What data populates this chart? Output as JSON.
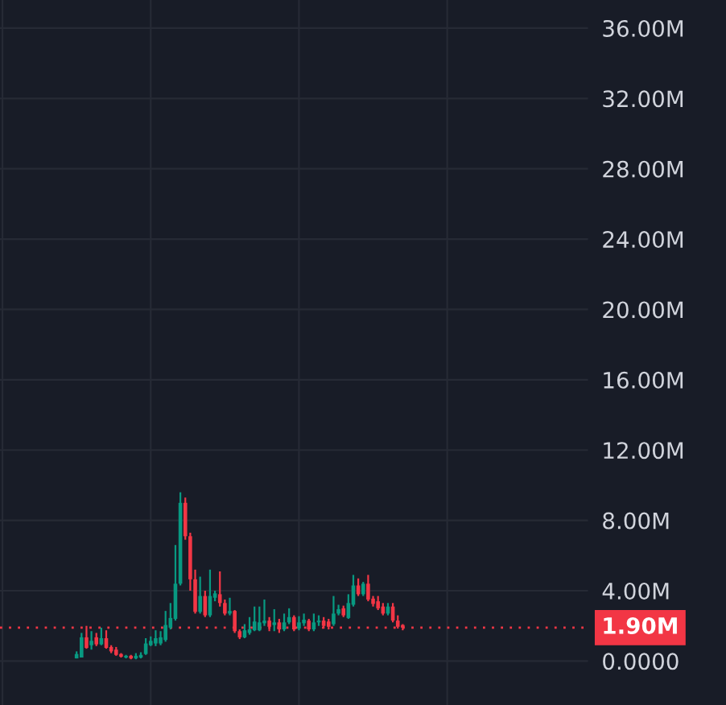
{
  "chart_data": {
    "type": "candlestick",
    "categories": [
      null,
      null,
      null,
      null,
      null,
      null,
      null,
      null,
      null,
      null,
      null,
      null,
      null,
      null,
      null,
      null,
      null,
      null,
      null,
      null,
      null,
      null,
      null,
      null,
      null,
      null,
      null,
      null,
      null,
      null,
      null,
      null,
      null,
      null,
      null,
      null,
      null,
      null,
      null,
      null,
      null,
      null,
      null,
      null,
      null,
      null,
      null,
      null,
      null,
      null,
      null,
      null,
      null,
      null,
      null,
      null,
      null,
      null,
      null,
      null,
      null,
      null,
      null,
      null,
      null,
      null,
      null,
      null,
      null,
      null,
      null,
      null,
      null,
      null,
      null,
      null,
      null,
      null,
      null,
      null,
      null,
      null,
      null,
      null,
      null,
      null,
      null,
      null,
      null,
      null,
      null,
      null,
      null,
      null,
      null,
      null,
      null,
      null,
      null,
      null,
      null,
      null,
      null,
      null,
      null,
      null,
      null,
      null,
      null,
      null,
      null,
      null,
      null,
      null,
      null,
      null,
      null,
      null,
      null
    ],
    "ohlc": [
      null,
      null,
      null,
      null,
      null,
      null,
      null,
      null,
      null,
      null,
      null,
      null,
      null,
      null,
      null,
      [
        0.15,
        0.55,
        0.15,
        0.4
      ],
      [
        0.2,
        1.6,
        0.2,
        1.35
      ],
      [
        1.35,
        2.0,
        0.7,
        0.75
      ],
      [
        0.9,
        1.7,
        0.65,
        1.15
      ],
      [
        1.35,
        1.6,
        0.85,
        0.95
      ],
      [
        0.95,
        1.9,
        0.9,
        1.3
      ],
      [
        1.3,
        1.75,
        0.7,
        0.75
      ],
      [
        0.8,
        0.9,
        0.45,
        0.55
      ],
      [
        0.65,
        0.8,
        0.3,
        0.35
      ],
      [
        0.4,
        0.45,
        0.2,
        0.25
      ],
      [
        0.2,
        0.35,
        0.15,
        0.3
      ],
      [
        0.3,
        0.35,
        0.1,
        0.15
      ],
      [
        0.15,
        0.45,
        0.1,
        0.3
      ],
      [
        0.2,
        0.5,
        0.15,
        0.35
      ],
      [
        0.4,
        1.3,
        0.35,
        1.0
      ],
      [
        0.9,
        1.4,
        0.85,
        1.15
      ],
      [
        1.0,
        1.75,
        0.85,
        1.3
      ],
      [
        1.0,
        1.7,
        0.9,
        1.35
      ],
      [
        1.2,
        2.85,
        1.1,
        2.05
      ],
      [
        1.9,
        3.3,
        1.8,
        2.45
      ],
      [
        2.4,
        6.6,
        2.3,
        4.4
      ],
      [
        4.4,
        9.6,
        4.3,
        9.0
      ],
      [
        9.0,
        9.3,
        6.9,
        7.1
      ],
      [
        7.1,
        7.3,
        4.0,
        4.65
      ],
      [
        4.65,
        5.2,
        2.7,
        2.8
      ],
      [
        2.8,
        4.8,
        2.7,
        3.7
      ],
      [
        3.7,
        4.0,
        2.5,
        2.6
      ],
      [
        2.6,
        5.2,
        2.5,
        3.7
      ],
      [
        3.6,
        4.0,
        3.4,
        3.85
      ],
      [
        3.8,
        5.1,
        3.1,
        3.3
      ],
      [
        3.3,
        3.5,
        2.6,
        2.7
      ],
      [
        2.7,
        3.6,
        2.6,
        2.85
      ],
      [
        2.85,
        2.9,
        1.6,
        1.7
      ],
      [
        1.7,
        1.8,
        1.25,
        1.35
      ],
      [
        1.35,
        2.1,
        1.3,
        1.75
      ],
      [
        1.6,
        2.5,
        1.5,
        1.8
      ],
      [
        1.75,
        3.1,
        1.7,
        2.25
      ],
      [
        1.75,
        3.1,
        1.7,
        2.2
      ],
      [
        2.15,
        3.5,
        2.0,
        2.3
      ],
      [
        2.3,
        2.5,
        1.7,
        1.95
      ],
      [
        2.05,
        2.95,
        1.7,
        2.2
      ],
      [
        2.2,
        2.4,
        1.6,
        1.8
      ],
      [
        1.8,
        2.7,
        1.7,
        2.2
      ],
      [
        2.2,
        3.0,
        2.1,
        2.5
      ],
      [
        2.5,
        2.6,
        1.7,
        1.8
      ],
      [
        1.85,
        2.55,
        1.75,
        2.2
      ],
      [
        2.15,
        2.7,
        2.0,
        2.35
      ],
      [
        2.3,
        2.4,
        1.7,
        1.8
      ],
      [
        1.8,
        2.7,
        1.7,
        2.2
      ],
      [
        2.2,
        2.6,
        2.0,
        2.3
      ],
      [
        2.3,
        2.5,
        1.85,
        2.0
      ],
      [
        2.25,
        2.4,
        1.8,
        1.95
      ],
      [
        2.1,
        3.7,
        2.0,
        2.7
      ],
      [
        2.7,
        3.2,
        2.6,
        2.95
      ],
      [
        3.0,
        3.15,
        2.5,
        2.6
      ],
      [
        2.45,
        3.8,
        2.4,
        3.3
      ],
      [
        3.2,
        4.9,
        3.1,
        4.3
      ],
      [
        4.3,
        4.7,
        3.7,
        3.8
      ],
      [
        3.8,
        4.5,
        3.7,
        4.4
      ],
      [
        4.4,
        4.9,
        3.4,
        3.5
      ],
      [
        3.55,
        3.7,
        3.1,
        3.25
      ],
      [
        3.4,
        3.7,
        2.9,
        3.0
      ],
      [
        3.1,
        3.3,
        2.6,
        2.7
      ],
      [
        2.7,
        3.3,
        2.6,
        3.1
      ],
      [
        3.1,
        3.3,
        2.2,
        2.3
      ],
      [
        2.3,
        2.6,
        1.85,
        1.95
      ],
      [
        2.05,
        2.1,
        1.75,
        1.9
      ],
      null,
      null,
      null,
      null,
      null,
      null,
      null,
      null,
      null,
      null,
      null,
      null,
      null,
      null,
      null,
      null,
      null,
      null,
      null,
      null,
      null,
      null,
      null,
      null,
      null,
      null,
      null,
      null,
      null,
      null,
      null,
      null,
      null,
      null,
      null,
      null,
      null
    ],
    "ylim": [
      -2.5,
      37.6
    ],
    "yticks": [
      {
        "value": 0,
        "label": "0.0000"
      },
      {
        "value": 4,
        "label": "4.00M"
      },
      {
        "value": 8,
        "label": "8.00M"
      },
      {
        "value": 12,
        "label": "12.00M"
      },
      {
        "value": 16,
        "label": "16.00M"
      },
      {
        "value": 20,
        "label": "20.00M"
      },
      {
        "value": 24,
        "label": "24.00M"
      },
      {
        "value": 28,
        "label": "28.00M"
      },
      {
        "value": 32,
        "label": "32.00M"
      },
      {
        "value": 36,
        "label": "36.00M"
      }
    ],
    "tick_labels": "y",
    "grid": true,
    "ref_lines": [
      {
        "axis": "y",
        "value": 1.9,
        "label": "1.90M",
        "color": "#f23645",
        "line_style": "dotted"
      }
    ]
  }
}
